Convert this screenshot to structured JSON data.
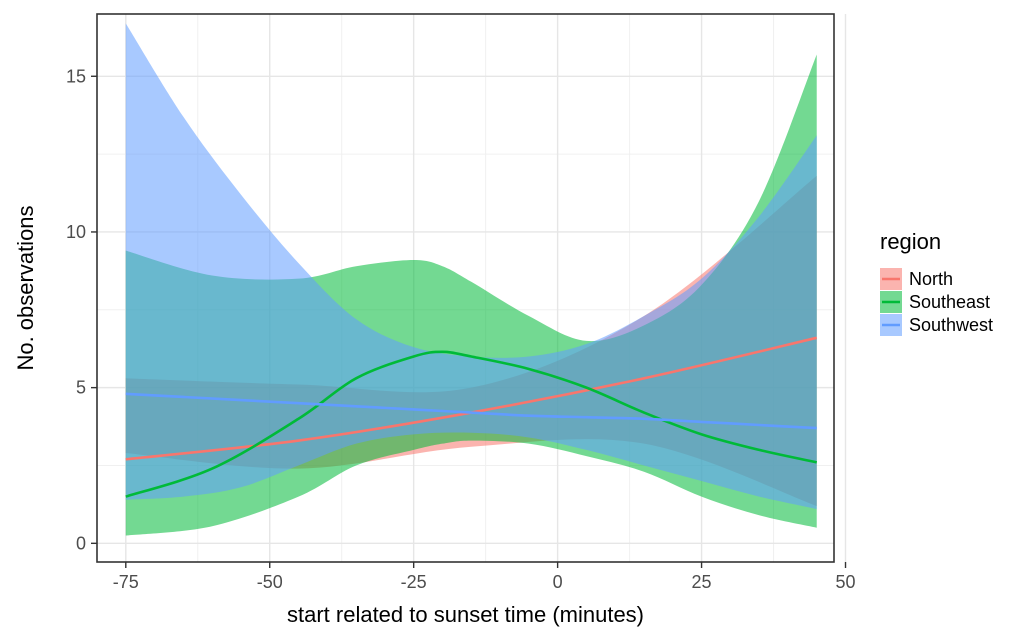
{
  "chart_data": {
    "type": "line",
    "xlabel": "start related to sunset time (minutes)",
    "ylabel": "No. observations",
    "xlim": [
      -80,
      48
    ],
    "ylim": [
      -0.6,
      17.0
    ],
    "x_ticks": [
      -75,
      -50,
      -25,
      0,
      25,
      50
    ],
    "x_tick_labels": [
      "-75",
      "-50",
      "-25",
      "0",
      "25",
      "50"
    ],
    "y_ticks": [
      0,
      5,
      10,
      15
    ],
    "y_tick_labels": [
      "0",
      "5",
      "10",
      "15"
    ],
    "grid": true,
    "legend": {
      "title": "region",
      "position": "right"
    },
    "series": [
      {
        "name": "North",
        "color": "#F8766D",
        "x": [
          -75,
          -45,
          -15,
          15,
          45
        ],
        "y": [
          2.7,
          3.3,
          4.2,
          5.3,
          6.6
        ],
        "lower": [
          2.9,
          2.4,
          3.1,
          3.2,
          1.2
        ],
        "upper": [
          5.3,
          5.1,
          5.0,
          7.3,
          11.8
        ]
      },
      {
        "name": "Southeast",
        "color": "#00BA38",
        "x": [
          -75,
          -60,
          -45,
          -35,
          -25,
          -20,
          -15,
          -5,
          5,
          15,
          25,
          35,
          45
        ],
        "y": [
          1.5,
          2.4,
          4.0,
          5.3,
          6.0,
          6.15,
          6.0,
          5.6,
          5.0,
          4.2,
          3.5,
          3.0,
          2.6
        ],
        "lower": [
          0.25,
          0.55,
          1.5,
          2.5,
          3.0,
          3.2,
          3.3,
          3.2,
          2.8,
          2.3,
          1.5,
          0.9,
          0.5
        ],
        "upper": [
          9.4,
          8.6,
          8.5,
          8.9,
          9.1,
          8.9,
          8.4,
          7.3,
          6.5,
          7.0,
          8.3,
          11.0,
          15.7
        ]
      },
      {
        "name": "Southwest",
        "color": "#619CFF",
        "x": [
          -75,
          -65,
          -55,
          -45,
          -35,
          -25,
          -15,
          -5,
          5,
          15,
          25,
          35,
          45
        ],
        "y": [
          4.8,
          4.7,
          4.6,
          4.5,
          4.4,
          4.3,
          4.2,
          4.1,
          4.05,
          4.0,
          3.9,
          3.8,
          3.7
        ],
        "lower": [
          1.4,
          1.5,
          1.8,
          2.5,
          3.2,
          3.5,
          3.55,
          3.4,
          3.0,
          2.5,
          2.0,
          1.5,
          1.1
        ],
        "upper": [
          16.7,
          13.7,
          11.2,
          9.0,
          7.2,
          6.3,
          6.0,
          6.0,
          6.4,
          7.3,
          8.5,
          10.5,
          13.1
        ]
      }
    ]
  }
}
